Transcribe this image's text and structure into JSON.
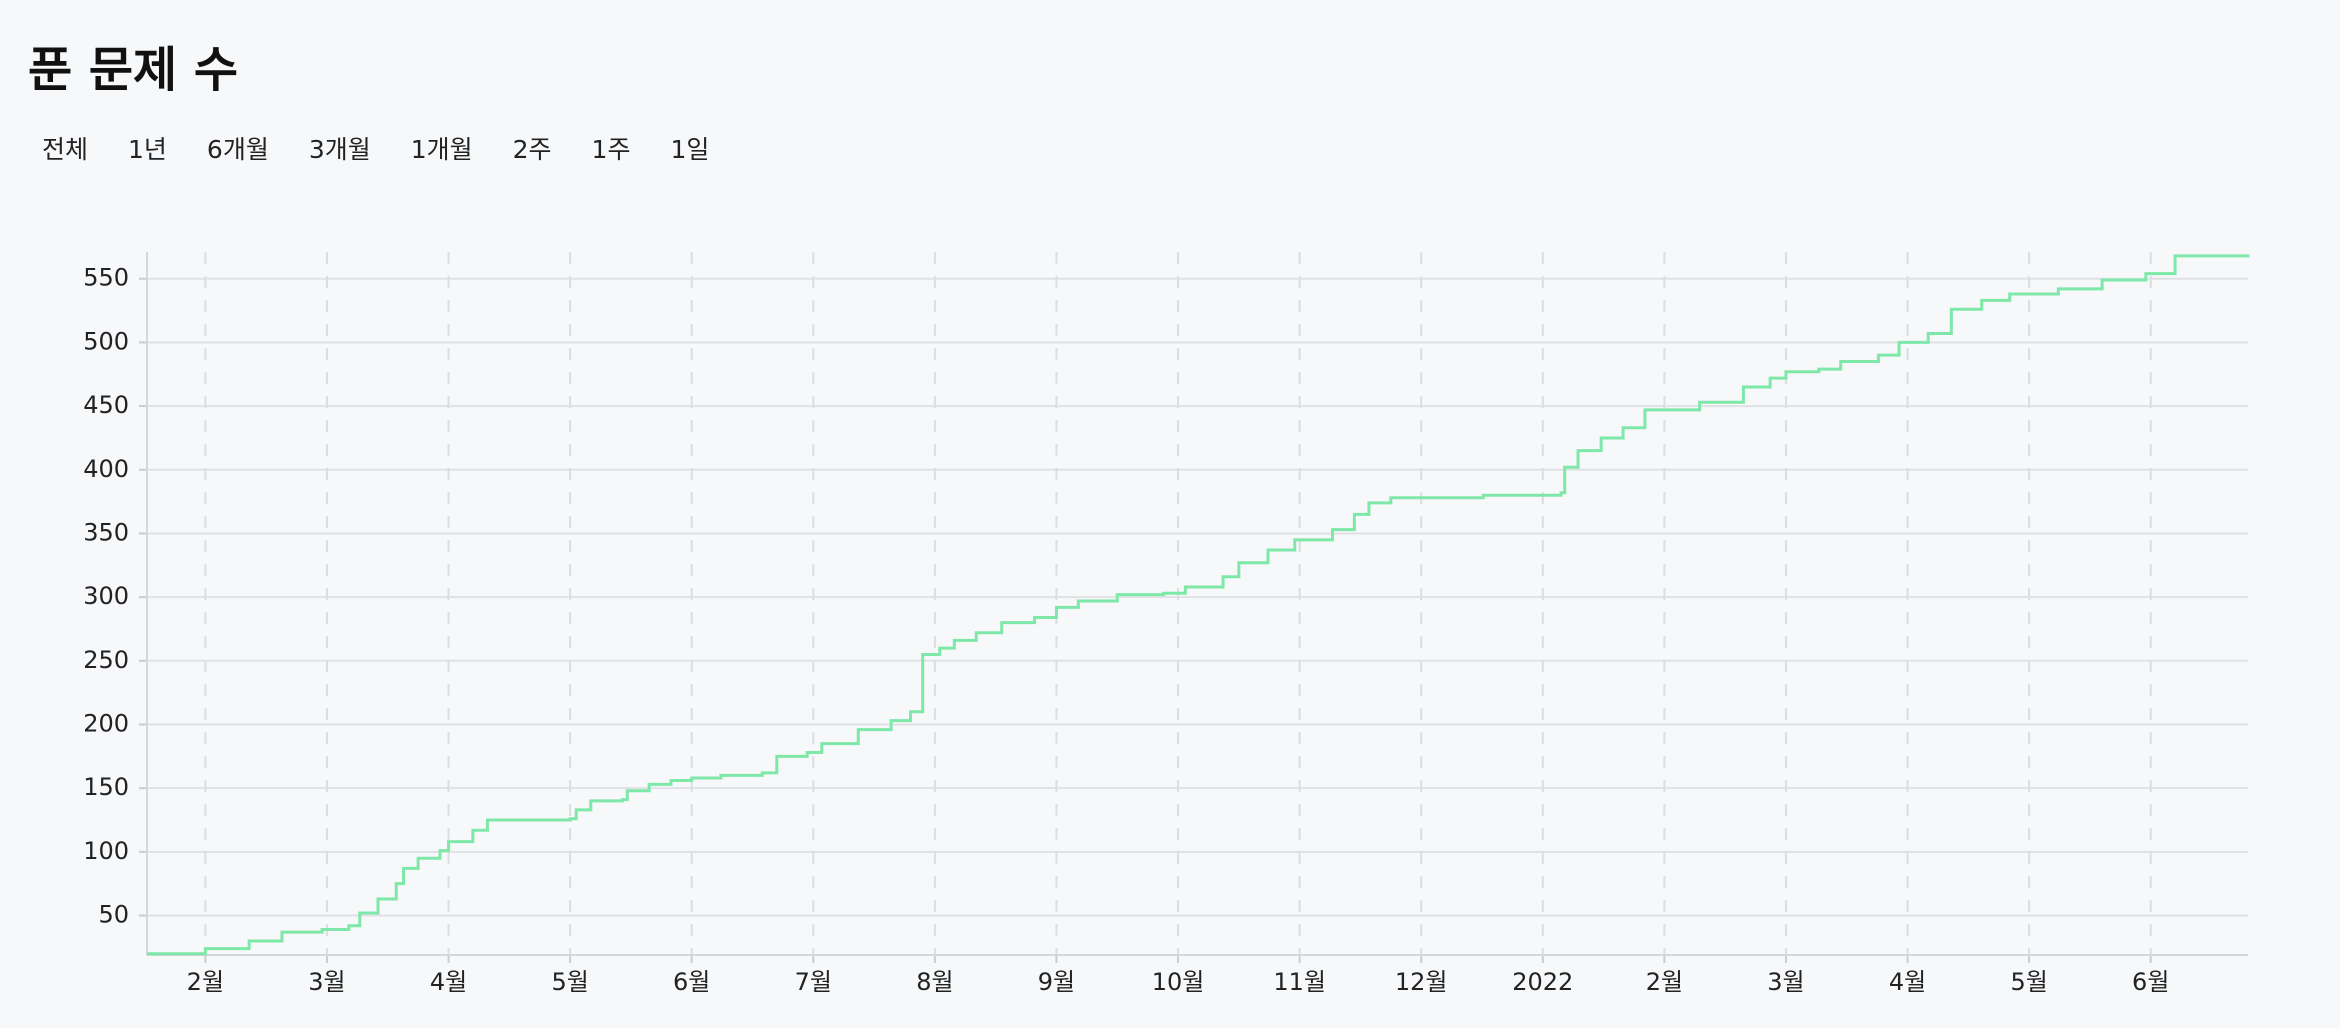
{
  "chart_data": {
    "type": "step-line",
    "title": "푼 문제 수",
    "ranges": [
      "전체",
      "1년",
      "6개월",
      "3개월",
      "1개월",
      "2주",
      "1주",
      "1일"
    ],
    "x": [
      0.52,
      1.0,
      1.36,
      1.63,
      1.96,
      2.18,
      2.27,
      2.42,
      2.57,
      2.63,
      2.75,
      2.93,
      3.0,
      3.2,
      3.32,
      4.0,
      4.05,
      4.17,
      4.43,
      4.47,
      4.65,
      4.83,
      5.0,
      5.24,
      5.58,
      5.7,
      5.95,
      6.07,
      6.37,
      6.64,
      6.8,
      6.9,
      7.04,
      7.16,
      7.34,
      7.55,
      7.82,
      8.0,
      8.18,
      8.5,
      8.88,
      9.06,
      9.37,
      9.5,
      9.74,
      9.96,
      10.27,
      10.45,
      10.57,
      10.75,
      11.51,
      12.15,
      12.18,
      12.29,
      12.48,
      12.66,
      12.84,
      13.29,
      13.65,
      13.87,
      14.0,
      14.27,
      14.45,
      14.76,
      14.93,
      15.17,
      15.36,
      15.61,
      15.84,
      16.24,
      16.6,
      16.96,
      17.2,
      17.8
    ],
    "series": [
      {
        "name": "푼 문제 수",
        "color": "#7ee8a8",
        "values": [
          20,
          24,
          30,
          37,
          39,
          42,
          52,
          63,
          75,
          87,
          95,
          101,
          108,
          117,
          125,
          126,
          133,
          140,
          141,
          148,
          153,
          156,
          158,
          160,
          162,
          175,
          178,
          185,
          196,
          203,
          210,
          255,
          260,
          266,
          272,
          280,
          284,
          292,
          297,
          302,
          303,
          308,
          316,
          327,
          337,
          345,
          353,
          365,
          374,
          378,
          380,
          382,
          402,
          415,
          425,
          433,
          447,
          453,
          465,
          472,
          477,
          479,
          485,
          490,
          500,
          507,
          526,
          533,
          538,
          542,
          549,
          554,
          568,
          569
        ]
      }
    ],
    "xlim": [
      0.52,
      17.8
    ],
    "xticks": [
      {
        "value": 1,
        "label": "2월"
      },
      {
        "value": 2,
        "label": "3월"
      },
      {
        "value": 3,
        "label": "4월"
      },
      {
        "value": 4,
        "label": "5월"
      },
      {
        "value": 5,
        "label": "6월"
      },
      {
        "value": 6,
        "label": "7월"
      },
      {
        "value": 7,
        "label": "8월"
      },
      {
        "value": 8,
        "label": "9월"
      },
      {
        "value": 9,
        "label": "10월"
      },
      {
        "value": 10,
        "label": "11월"
      },
      {
        "value": 11,
        "label": "12월"
      },
      {
        "value": 12,
        "label": "2022"
      },
      {
        "value": 13,
        "label": "2월"
      },
      {
        "value": 14,
        "label": "3월"
      },
      {
        "value": 15,
        "label": "4월"
      },
      {
        "value": 16,
        "label": "5월"
      },
      {
        "value": 17,
        "label": "6월"
      }
    ],
    "ylim": [
      19,
      571
    ],
    "yticks": [
      50,
      100,
      150,
      200,
      250,
      300,
      350,
      400,
      450,
      500,
      550
    ],
    "grid": true
  }
}
